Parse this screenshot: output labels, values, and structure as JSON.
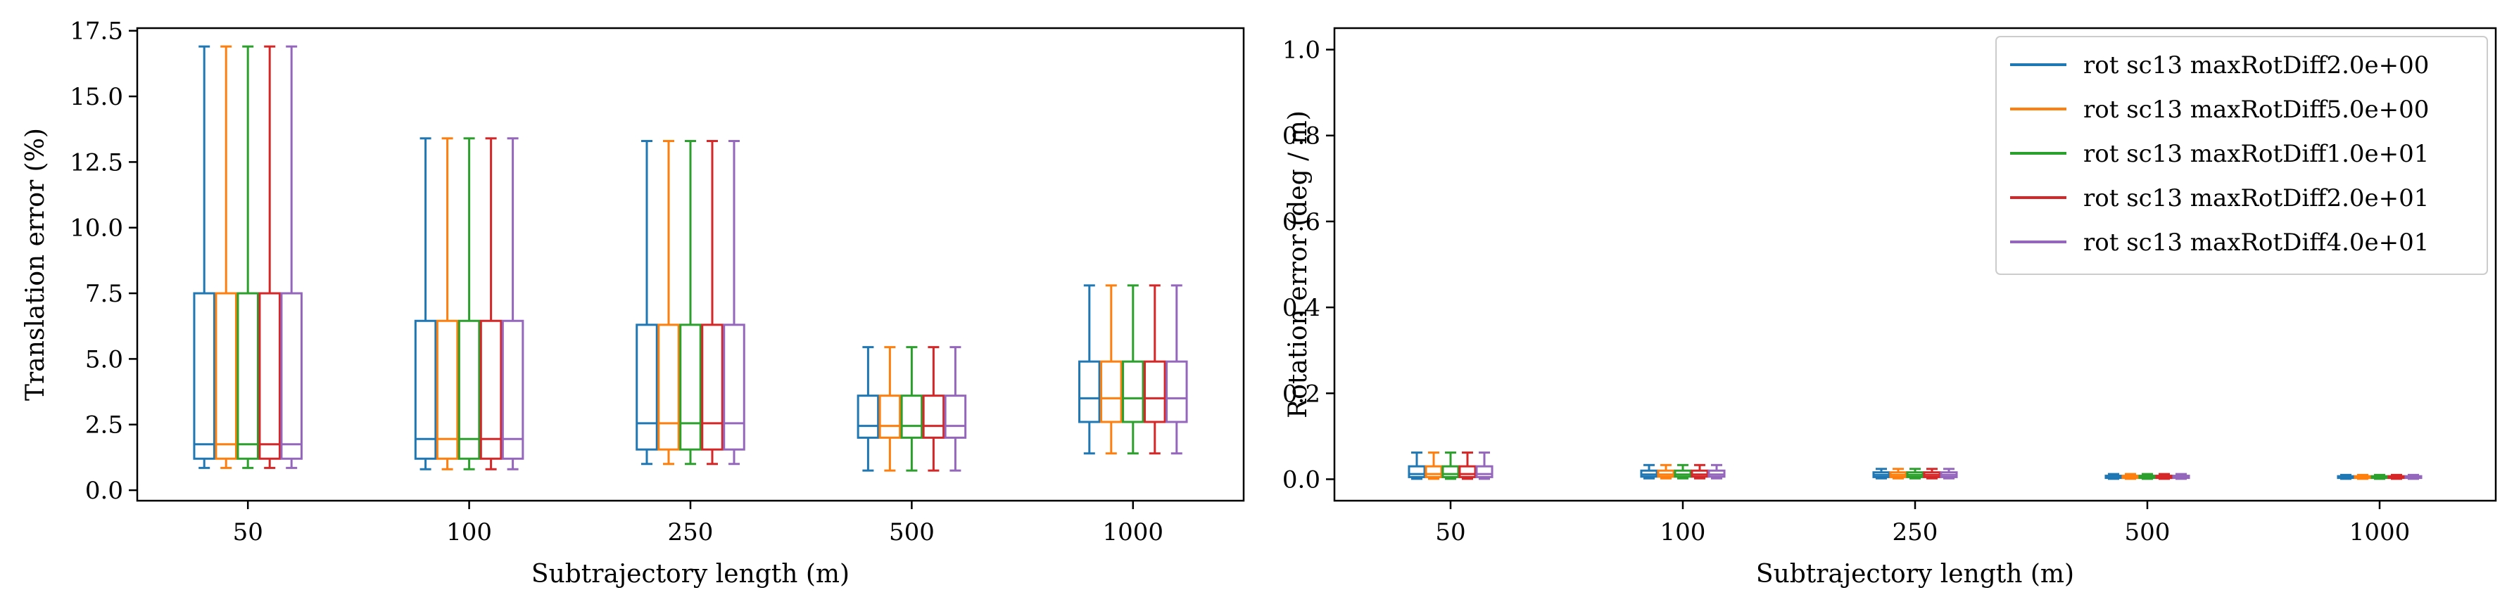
{
  "colors": {
    "series": [
      "#1f77b4",
      "#ff7f0e",
      "#2ca02c",
      "#d62728",
      "#9467bd"
    ],
    "axes": "#000000",
    "background": "#ffffff"
  },
  "chart_data": [
    {
      "type": "box",
      "xlabel": "Subtrajectory length (m)",
      "ylabel": "Translation error (%)",
      "categories": [
        "50",
        "100",
        "250",
        "500",
        "1000"
      ],
      "ylim": [
        -0.4,
        17.6
      ],
      "yticks": [
        0.0,
        2.5,
        5.0,
        7.5,
        10.0,
        12.5,
        15.0,
        17.5
      ],
      "ytick_labels": [
        "0.0",
        "2.5",
        "5.0",
        "7.5",
        "10.0",
        "12.5",
        "15.0",
        "17.5"
      ],
      "grid": false,
      "legend": false,
      "series": [
        {
          "name": "rot sc13 maxRotDiff2.0e+00",
          "boxes": [
            {
              "whislo": 0.85,
              "q1": 1.2,
              "med": 1.75,
              "q3": 7.5,
              "whishi": 16.9
            },
            {
              "whislo": 0.8,
              "q1": 1.2,
              "med": 1.95,
              "q3": 6.45,
              "whishi": 13.4
            },
            {
              "whislo": 1.0,
              "q1": 1.55,
              "med": 2.55,
              "q3": 6.3,
              "whishi": 13.3
            },
            {
              "whislo": 0.75,
              "q1": 2.0,
              "med": 2.45,
              "q3": 3.6,
              "whishi": 5.45
            },
            {
              "whislo": 1.4,
              "q1": 2.6,
              "med": 3.5,
              "q3": 4.9,
              "whishi": 7.8
            }
          ]
        },
        {
          "name": "rot sc13 maxRotDiff5.0e+00",
          "boxes": [
            {
              "whislo": 0.85,
              "q1": 1.2,
              "med": 1.75,
              "q3": 7.5,
              "whishi": 16.9
            },
            {
              "whislo": 0.8,
              "q1": 1.2,
              "med": 1.95,
              "q3": 6.45,
              "whishi": 13.4
            },
            {
              "whislo": 1.0,
              "q1": 1.55,
              "med": 2.55,
              "q3": 6.3,
              "whishi": 13.3
            },
            {
              "whislo": 0.75,
              "q1": 2.0,
              "med": 2.45,
              "q3": 3.6,
              "whishi": 5.45
            },
            {
              "whislo": 1.4,
              "q1": 2.6,
              "med": 3.5,
              "q3": 4.9,
              "whishi": 7.8
            }
          ]
        },
        {
          "name": "rot sc13 maxRotDiff1.0e+01",
          "boxes": [
            {
              "whislo": 0.85,
              "q1": 1.2,
              "med": 1.75,
              "q3": 7.5,
              "whishi": 16.9
            },
            {
              "whislo": 0.8,
              "q1": 1.2,
              "med": 1.95,
              "q3": 6.45,
              "whishi": 13.4
            },
            {
              "whislo": 1.0,
              "q1": 1.55,
              "med": 2.55,
              "q3": 6.3,
              "whishi": 13.3
            },
            {
              "whislo": 0.75,
              "q1": 2.0,
              "med": 2.45,
              "q3": 3.6,
              "whishi": 5.45
            },
            {
              "whislo": 1.4,
              "q1": 2.6,
              "med": 3.5,
              "q3": 4.9,
              "whishi": 7.8
            }
          ]
        },
        {
          "name": "rot sc13 maxRotDiff2.0e+01",
          "boxes": [
            {
              "whislo": 0.85,
              "q1": 1.2,
              "med": 1.75,
              "q3": 7.5,
              "whishi": 16.9
            },
            {
              "whislo": 0.8,
              "q1": 1.2,
              "med": 1.95,
              "q3": 6.45,
              "whishi": 13.4
            },
            {
              "whislo": 1.0,
              "q1": 1.55,
              "med": 2.55,
              "q3": 6.3,
              "whishi": 13.3
            },
            {
              "whislo": 0.75,
              "q1": 2.0,
              "med": 2.45,
              "q3": 3.6,
              "whishi": 5.45
            },
            {
              "whislo": 1.4,
              "q1": 2.6,
              "med": 3.5,
              "q3": 4.9,
              "whishi": 7.8
            }
          ]
        },
        {
          "name": "rot sc13 maxRotDiff4.0e+01",
          "boxes": [
            {
              "whislo": 0.85,
              "q1": 1.2,
              "med": 1.75,
              "q3": 7.5,
              "whishi": 16.9
            },
            {
              "whislo": 0.8,
              "q1": 1.2,
              "med": 1.95,
              "q3": 6.45,
              "whishi": 13.4
            },
            {
              "whislo": 1.0,
              "q1": 1.55,
              "med": 2.55,
              "q3": 6.3,
              "whishi": 13.3
            },
            {
              "whislo": 0.75,
              "q1": 2.0,
              "med": 2.45,
              "q3": 3.6,
              "whishi": 5.45
            },
            {
              "whislo": 1.4,
              "q1": 2.6,
              "med": 3.5,
              "q3": 4.9,
              "whishi": 7.8
            }
          ]
        }
      ]
    },
    {
      "type": "box",
      "xlabel": "Subtrajectory length (m)",
      "ylabel": "Rotation error (deg / m)",
      "categories": [
        "50",
        "100",
        "250",
        "500",
        "1000"
      ],
      "ylim": [
        -0.05,
        1.05
      ],
      "yticks": [
        0.0,
        0.2,
        0.4,
        0.6,
        0.8,
        1.0
      ],
      "ytick_labels": [
        "0.0",
        "0.2",
        "0.4",
        "0.6",
        "0.8",
        "1.0"
      ],
      "grid": false,
      "legend": "top-right",
      "series": [
        {
          "name": "rot sc13 maxRotDiff2.0e+00",
          "boxes": [
            {
              "whislo": 0.001,
              "q1": 0.005,
              "med": 0.012,
              "q3": 0.03,
              "whishi": 0.062
            },
            {
              "whislo": 0.002,
              "q1": 0.006,
              "med": 0.011,
              "q3": 0.02,
              "whishi": 0.033
            },
            {
              "whislo": 0.002,
              "q1": 0.005,
              "med": 0.01,
              "q3": 0.016,
              "whishi": 0.024
            },
            {
              "whislo": 0.001,
              "q1": 0.003,
              "med": 0.005,
              "q3": 0.008,
              "whishi": 0.012
            },
            {
              "whislo": 0.001,
              "q1": 0.003,
              "med": 0.005,
              "q3": 0.007,
              "whishi": 0.01
            }
          ]
        },
        {
          "name": "rot sc13 maxRotDiff5.0e+00",
          "boxes": [
            {
              "whislo": 0.001,
              "q1": 0.005,
              "med": 0.012,
              "q3": 0.03,
              "whishi": 0.062
            },
            {
              "whislo": 0.002,
              "q1": 0.006,
              "med": 0.011,
              "q3": 0.02,
              "whishi": 0.033
            },
            {
              "whislo": 0.002,
              "q1": 0.005,
              "med": 0.01,
              "q3": 0.016,
              "whishi": 0.024
            },
            {
              "whislo": 0.001,
              "q1": 0.003,
              "med": 0.005,
              "q3": 0.008,
              "whishi": 0.012
            },
            {
              "whislo": 0.001,
              "q1": 0.003,
              "med": 0.005,
              "q3": 0.007,
              "whishi": 0.01
            }
          ]
        },
        {
          "name": "rot sc13 maxRotDiff1.0e+01",
          "boxes": [
            {
              "whislo": 0.001,
              "q1": 0.005,
              "med": 0.012,
              "q3": 0.03,
              "whishi": 0.062
            },
            {
              "whislo": 0.002,
              "q1": 0.006,
              "med": 0.011,
              "q3": 0.02,
              "whishi": 0.033
            },
            {
              "whislo": 0.002,
              "q1": 0.005,
              "med": 0.01,
              "q3": 0.016,
              "whishi": 0.024
            },
            {
              "whislo": 0.001,
              "q1": 0.003,
              "med": 0.005,
              "q3": 0.008,
              "whishi": 0.012
            },
            {
              "whislo": 0.001,
              "q1": 0.003,
              "med": 0.005,
              "q3": 0.007,
              "whishi": 0.01
            }
          ]
        },
        {
          "name": "rot sc13 maxRotDiff2.0e+01",
          "boxes": [
            {
              "whislo": 0.001,
              "q1": 0.005,
              "med": 0.012,
              "q3": 0.03,
              "whishi": 0.062
            },
            {
              "whislo": 0.002,
              "q1": 0.006,
              "med": 0.011,
              "q3": 0.02,
              "whishi": 0.033
            },
            {
              "whislo": 0.002,
              "q1": 0.005,
              "med": 0.01,
              "q3": 0.016,
              "whishi": 0.024
            },
            {
              "whislo": 0.001,
              "q1": 0.003,
              "med": 0.005,
              "q3": 0.008,
              "whishi": 0.012
            },
            {
              "whislo": 0.001,
              "q1": 0.003,
              "med": 0.005,
              "q3": 0.007,
              "whishi": 0.01
            }
          ]
        },
        {
          "name": "rot sc13 maxRotDiff4.0e+01",
          "boxes": [
            {
              "whislo": 0.001,
              "q1": 0.005,
              "med": 0.012,
              "q3": 0.03,
              "whishi": 0.062
            },
            {
              "whislo": 0.002,
              "q1": 0.006,
              "med": 0.011,
              "q3": 0.02,
              "whishi": 0.033
            },
            {
              "whislo": 0.002,
              "q1": 0.005,
              "med": 0.01,
              "q3": 0.016,
              "whishi": 0.024
            },
            {
              "whislo": 0.001,
              "q1": 0.003,
              "med": 0.005,
              "q3": 0.008,
              "whishi": 0.012
            },
            {
              "whislo": 0.001,
              "q1": 0.003,
              "med": 0.005,
              "q3": 0.007,
              "whishi": 0.01
            }
          ]
        }
      ]
    }
  ]
}
